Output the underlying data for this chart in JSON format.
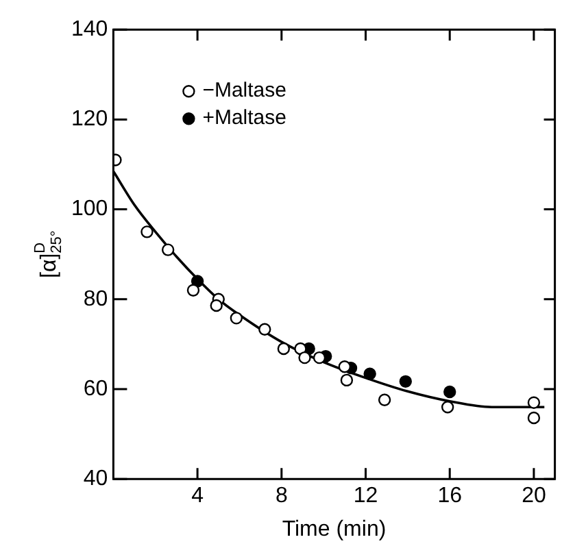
{
  "chart_data": {
    "type": "scatter",
    "xlabel": "Time (min)",
    "ylabel": "[α]$^{D}$$_{25°}$",
    "xlim": [
      0,
      21
    ],
    "ylim": [
      40,
      140
    ],
    "xticks": [
      4,
      8,
      12,
      16,
      20
    ],
    "yticks": [
      40,
      60,
      80,
      100,
      120,
      140
    ],
    "legend": "top left",
    "marker": "circle",
    "series": [
      {
        "name": "−Maltase",
        "color": "#000000",
        "x": [
          0.1,
          1.6,
          2.6,
          3.8,
          5.0,
          4.9,
          5.85,
          7.2,
          8.1,
          8.9,
          9.1,
          9.8,
          11.0,
          11.1,
          12.9,
          15.9,
          20.0,
          20.0
        ],
        "values": [
          111,
          95,
          91,
          82,
          80,
          78.6,
          75.8,
          73.3,
          69,
          69,
          67,
          67,
          65,
          62,
          57.6,
          56,
          57,
          53.6
        ]
      },
      {
        "name": "+Maltase",
        "color": "#000000",
        "x": [
          4.0,
          9.3,
          10.1,
          11.3,
          12.2,
          13.9,
          16.0
        ],
        "values": [
          84,
          69,
          67.3,
          64.7,
          63.4,
          61.7,
          59.4
        ]
      },
      {
        "type": "line",
        "color": "#000000",
        "marker": "none",
        "x": [
          0,
          1,
          2,
          3,
          4,
          5,
          6,
          8,
          10,
          12,
          14,
          16,
          18,
          20.5
        ],
        "values": [
          108.5,
          101,
          95,
          89.5,
          84.5,
          80,
          76.5,
          70.5,
          66,
          62.5,
          59.5,
          57.3,
          56,
          56
        ]
      }
    ]
  }
}
